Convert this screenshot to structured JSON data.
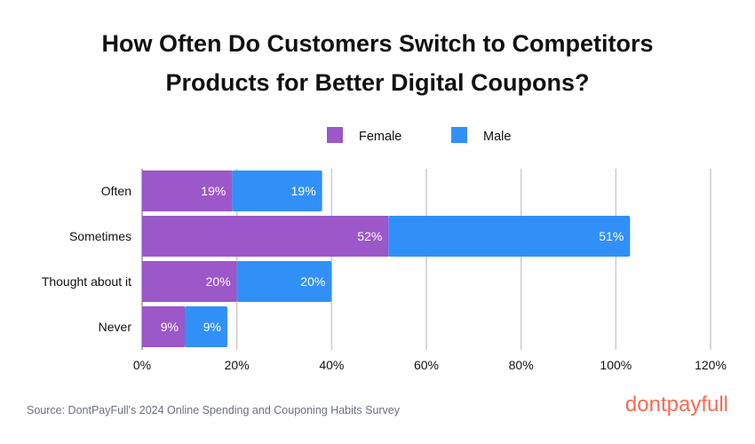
{
  "chart_data": {
    "type": "bar",
    "orientation": "horizontal",
    "stacked": true,
    "title_lines": [
      "How Often Do Customers Switch to Competitors",
      "Products for Better Digital Coupons?"
    ],
    "categories": [
      "Often",
      "Sometimes",
      "Thought about it",
      "Never"
    ],
    "series": [
      {
        "name": "Female",
        "color": "#9c57c9",
        "values": [
          19,
          52,
          20,
          9
        ],
        "labels": [
          "19%",
          "52%",
          "20%",
          "9%"
        ]
      },
      {
        "name": "Male",
        "color": "#3190f7",
        "values": [
          19,
          51,
          20,
          9
        ],
        "labels": [
          "19%",
          "51%",
          "20%",
          "9%"
        ]
      }
    ],
    "xlim": [
      0,
      120
    ],
    "xticks": [
      0,
      20,
      40,
      60,
      80,
      100,
      120
    ],
    "xtick_labels": [
      "0%",
      "20%",
      "40%",
      "60%",
      "80%",
      "100%",
      "120%"
    ],
    "grid": "vertical",
    "legend_position": "top"
  },
  "footer": {
    "source": "Source: DontPayFull's 2024 Online Spending and Couponing Habits Survey",
    "logo": "dontpayfull",
    "logo_color": "#f36b55"
  }
}
